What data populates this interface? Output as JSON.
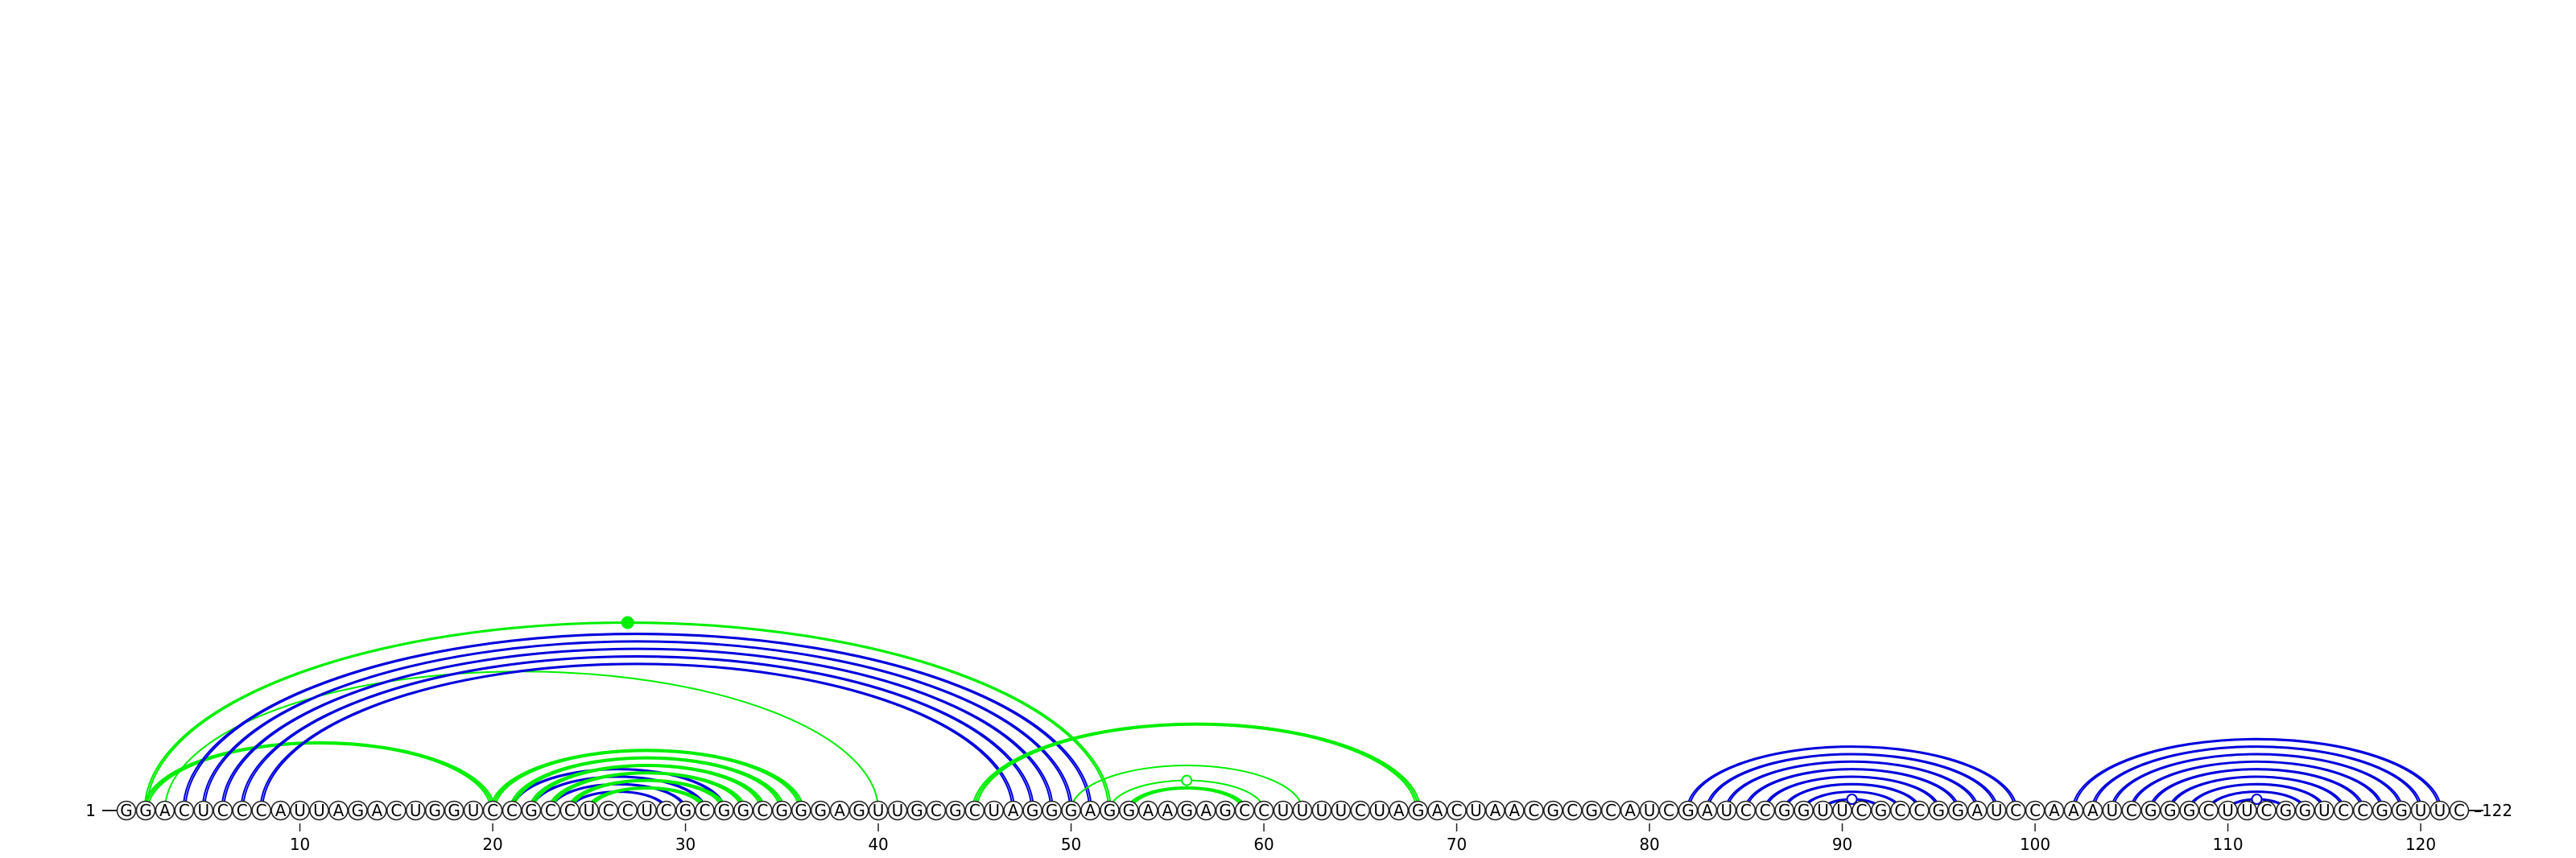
{
  "sequence": "GGACUCCCAUUAGACUGGUCCGCCUCCUCGCGGCGGGAGUUGCGCUAGGGAGGAAGAGCCUUUUCUAGACUAACGCGCAUCGAUCCGGUUCGCCGGAUCCAAAUCGGGCUUCGGUCCGGUUC",
  "start_label": "1",
  "end_label": "122",
  "tick_labels": [
    "10",
    "20",
    "30",
    "40",
    "50",
    "60",
    "70",
    "80",
    "90",
    "100",
    "110",
    "120"
  ],
  "colors": {
    "blue_pair": "#0000dd",
    "green_pair": "#00ee00",
    "nucleotide_fill": "#ffffff",
    "nucleotide_stroke": "#222222",
    "text": "#000000"
  },
  "arcs": [
    {
      "color": "green",
      "strands": 2,
      "pairs": [
        [
          2,
          52
        ]
      ],
      "marker": "filled"
    },
    {
      "color": "green",
      "strands": 1,
      "pairs": [
        [
          3,
          40
        ]
      ]
    },
    {
      "color": "green",
      "strands": 3,
      "pairs": [
        [
          2,
          20
        ]
      ]
    },
    {
      "color": "blue",
      "strands": 2,
      "pairs": [
        [
          4,
          51
        ],
        [
          5,
          50
        ],
        [
          6,
          49
        ],
        [
          7,
          48
        ],
        [
          8,
          47
        ]
      ]
    },
    {
      "color": "blue",
      "strands": 2,
      "pairs": [
        [
          21,
          32
        ],
        [
          22,
          31
        ],
        [
          23,
          30
        ],
        [
          24,
          29
        ]
      ]
    },
    {
      "color": "green",
      "strands": 3,
      "pairs": [
        [
          20,
          36
        ],
        [
          21,
          35
        ],
        [
          22,
          34
        ],
        [
          23,
          33
        ],
        [
          24,
          32
        ],
        [
          25,
          31
        ]
      ]
    },
    {
      "color": "green",
      "strands": 3,
      "pairs": [
        [
          45,
          68
        ]
      ]
    },
    {
      "color": "green",
      "strands": 1,
      "pairs": [
        [
          50,
          62
        ],
        [
          52,
          60
        ]
      ],
      "marker": "open"
    },
    {
      "color": "green",
      "strands": 3,
      "pairs": [
        [
          53,
          59
        ]
      ]
    },
    {
      "color": "blue",
      "strands": 2,
      "pairs": [
        [
          82,
          99
        ],
        [
          83,
          98
        ],
        [
          84,
          97
        ],
        [
          85,
          96
        ],
        [
          86,
          95
        ],
        [
          87,
          94
        ],
        [
          88,
          93
        ],
        [
          89,
          92
        ]
      ],
      "marker": "open"
    },
    {
      "color": "blue",
      "strands": 2,
      "pairs": [
        [
          102,
          121
        ],
        [
          103,
          120
        ],
        [
          104,
          119
        ],
        [
          105,
          118
        ],
        [
          106,
          117
        ],
        [
          107,
          116
        ],
        [
          108,
          115
        ],
        [
          109,
          114
        ],
        [
          110,
          113
        ]
      ],
      "marker": "open"
    }
  ]
}
